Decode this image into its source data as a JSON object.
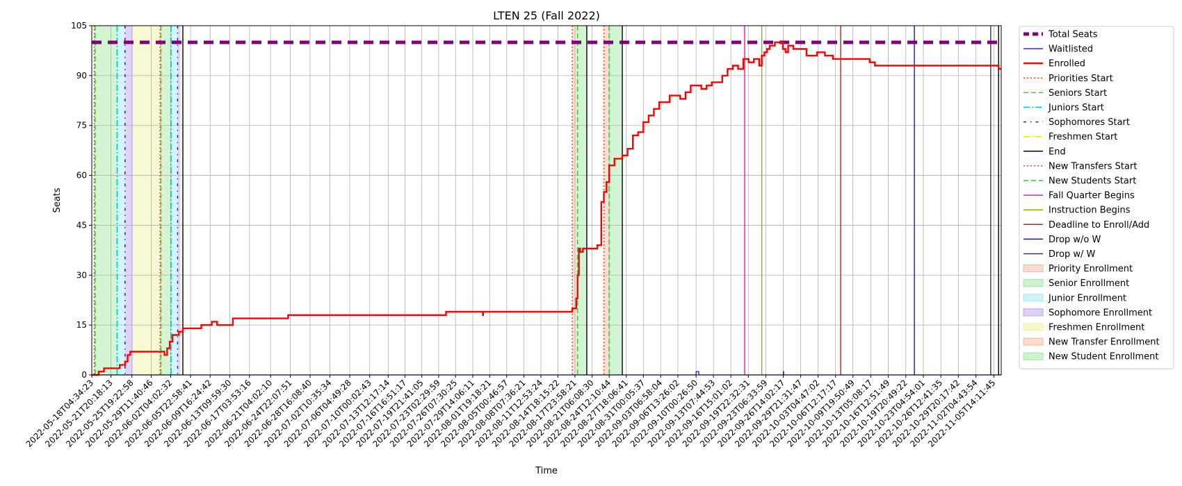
{
  "chart_data": {
    "type": "line",
    "title": "LTEN 25 (Fall 2022)",
    "xlabel": "Time",
    "ylabel": "Seats",
    "ylim": [
      0,
      105
    ],
    "yticks": [
      0,
      15,
      30,
      45,
      60,
      75,
      90,
      105
    ],
    "grid": true,
    "legend_position": "outside-right",
    "x_range": [
      "2022-05-18T04:34:23",
      "2022-11-07T00:00:00"
    ],
    "x_tick_labels": [
      "2022-05-18T04:34:23",
      "2022-05-21T20:18:13",
      "2022-05-25T19:22:58",
      "2022-05-29T11:40:46",
      "2022-06-02T04:02:32",
      "2022-06-05T22:58:41",
      "2022-06-09T16:24:42",
      "2022-06-13T09:59:30",
      "2022-06-17T03:53:16",
      "2022-06-21T04:02:10",
      "2022-06-24T22:07:51",
      "2022-06-28T16:08:40",
      "2022-07-02T10:35:34",
      "2022-07-06T04:49:28",
      "2022-07-10T00:02:43",
      "2022-07-13T12:17:14",
      "2022-07-16T16:51:17",
      "2022-07-19T21:41:05",
      "2022-07-23T02:29:59",
      "2022-07-26T07:30:25",
      "2022-07-29T14:06:11",
      "2022-08-01T19:18:21",
      "2022-08-05T00:46:57",
      "2022-08-08T07:36:21",
      "2022-08-11T12:53:24",
      "2022-08-14T18:15:22",
      "2022-08-17T23:58:21",
      "2022-08-21T06:08:30",
      "2022-08-24T12:10:44",
      "2022-08-27T18:06:41",
      "2022-08-31T00:05:37",
      "2022-09-03T06:58:04",
      "2022-09-06T13:26:02",
      "2022-09-10T00:26:50",
      "2022-09-13T07:44:53",
      "2022-09-16T15:01:02",
      "2022-09-19T22:32:31",
      "2022-09-23T06:33:59",
      "2022-09-26T14:02:17",
      "2022-09-29T21:31:47",
      "2022-10-03T04:47:02",
      "2022-10-06T12:17:17",
      "2022-10-09T19:50:49",
      "2022-10-13T05:08:17",
      "2022-10-16T12:51:49",
      "2022-10-19T20:49:22",
      "2022-10-23T04:54:01",
      "2022-10-26T12:41:35",
      "2022-10-29T20:17:42",
      "2022-11-02T04:43:54",
      "2022-11-05T14:11:45"
    ],
    "series": [
      {
        "name": "Total Seats",
        "color": "#800080",
        "style": "dashed-thick",
        "x": [
          "2022-05-18T04:34:23",
          "2022-11-07T00:00:00"
        ],
        "y": [
          100,
          100
        ]
      },
      {
        "name": "Waitlisted",
        "color": "#0000ff",
        "style": "solid-thin",
        "x": [
          "2022-05-18T04:34:23",
          "2022-09-10T00:00:00",
          "2022-09-10T00:30:00",
          "2022-09-10T12:00:00",
          "2022-09-10T12:30:00",
          "2022-09-26T14:00:00",
          "2022-09-26T15:00:00",
          "2022-09-26T16:00:00",
          "2022-11-07T00:00:00"
        ],
        "y": [
          0,
          0,
          1,
          1,
          0,
          0,
          1,
          0,
          0
        ]
      },
      {
        "name": "Enrolled",
        "color": "#ff0000",
        "style": "solid-thick",
        "x": [
          "2022-05-18T04:34:23",
          "2022-05-19T12:00:00",
          "2022-05-20T12:00:00",
          "2022-05-22T12:00:00",
          "2022-05-23T12:00:00",
          "2022-05-24T12:00:00",
          "2022-05-25T00:00:00",
          "2022-05-25T12:00:00",
          "2022-05-26T00:00:00",
          "2022-05-31T12:00:00",
          "2022-06-01T00:00:00",
          "2022-06-01T12:00:00",
          "2022-06-02T00:00:00",
          "2022-06-02T12:00:00",
          "2022-06-03T06:00:00",
          "2022-06-03T18:00:00",
          "2022-06-04T12:00:00",
          "2022-06-06T00:00:00",
          "2022-06-08T00:00:00",
          "2022-06-10T00:00:00",
          "2022-06-11T00:00:00",
          "2022-06-14T00:00:00",
          "2022-06-18T00:00:00",
          "2022-06-24T12:00:00",
          "2022-06-25T00:00:00",
          "2022-06-25T01:00:00",
          "2022-07-10T00:00:00",
          "2022-07-24T12:00:00",
          "2022-07-26T00:00:00",
          "2022-07-31T12:00:00",
          "2022-07-31T13:00:00",
          "2022-08-02T00:00:00",
          "2022-08-17T12:00:00",
          "2022-08-17T18:00:00",
          "2022-08-18T06:00:00",
          "2022-08-18T12:00:00",
          "2022-08-18T18:00:00",
          "2022-08-19T00:00:00",
          "2022-08-19T12:00:00",
          "2022-08-20T00:00:00",
          "2022-08-22T06:00:00",
          "2022-08-23T00:00:00",
          "2022-08-23T12:00:00",
          "2022-08-24T00:00:00",
          "2022-08-24T12:00:00",
          "2022-08-25T00:00:00",
          "2022-08-25T12:00:00",
          "2022-08-26T00:00:00",
          "2022-08-27T00:00:00",
          "2022-08-28T00:00:00",
          "2022-08-29T00:00:00",
          "2022-08-30T00:00:00",
          "2022-08-31T00:00:00",
          "2022-09-01T00:00:00",
          "2022-09-02T00:00:00",
          "2022-09-03T00:00:00",
          "2022-09-04T00:00:00",
          "2022-09-05T00:00:00",
          "2022-09-07T00:00:00",
          "2022-09-08T00:00:00",
          "2022-09-09T00:00:00",
          "2022-09-10T12:00:00",
          "2022-09-11T00:00:00",
          "2022-09-12T00:00:00",
          "2022-09-12T12:00:00",
          "2022-09-13T00:00:00",
          "2022-09-15T00:00:00",
          "2022-09-16T00:00:00",
          "2022-09-17T00:00:00",
          "2022-09-17T12:00:00",
          "2022-09-18T00:00:00",
          "2022-09-19T00:00:00",
          "2022-09-20T00:00:00",
          "2022-09-21T00:00:00",
          "2022-09-22T00:00:00",
          "2022-09-22T12:00:00",
          "2022-09-23T00:00:00",
          "2022-09-23T12:00:00",
          "2022-09-24T00:00:00",
          "2022-09-25T00:00:00",
          "2022-09-26T00:00:00",
          "2022-09-26T12:00:00",
          "2022-09-27T00:00:00",
          "2022-09-27T12:00:00",
          "2022-09-28T00:00:00",
          "2022-09-28T12:00:00",
          "2022-09-30T00:00:00",
          "2022-10-01T00:00:00",
          "2022-10-02T00:00:00",
          "2022-10-03T00:00:00",
          "2022-10-03T12:00:00",
          "2022-10-04T12:00:00",
          "2022-10-05T00:00:00",
          "2022-10-05T12:00:00",
          "2022-10-06T00:00:00",
          "2022-10-06T12:00:00",
          "2022-10-07T00:00:00",
          "2022-10-07T12:00:00",
          "2022-10-08T00:00:00",
          "2022-10-09T00:00:00",
          "2022-10-13T00:00:00",
          "2022-10-14T00:00:00",
          "2022-10-15T00:00:00",
          "2022-11-06T00:00:00",
          "2022-11-06T12:00:00",
          "2022-11-07T00:00:00"
        ],
        "y": [
          0,
          1,
          2,
          2,
          3,
          4,
          6,
          7,
          7,
          7,
          6,
          8,
          10,
          12,
          12,
          13,
          14,
          14,
          15,
          16,
          15,
          17,
          17,
          18,
          18,
          18,
          18,
          19,
          19,
          18,
          19,
          19,
          20,
          20,
          23,
          30,
          38,
          37,
          38,
          38,
          39,
          52,
          55,
          58,
          63,
          63,
          65,
          65,
          66,
          68,
          72,
          73,
          76,
          78,
          80,
          82,
          82,
          84,
          83,
          85,
          87,
          87,
          86,
          87,
          87,
          88,
          90,
          92,
          93,
          93,
          92,
          95,
          94,
          95,
          93,
          96,
          97,
          98,
          99,
          100,
          100,
          98,
          97,
          99,
          99,
          98,
          98,
          96,
          96,
          97,
          97,
          96,
          96,
          96,
          95,
          95,
          95,
          95,
          95,
          95,
          94,
          93,
          93,
          93,
          92,
          92
        ]
      }
    ],
    "event_lines": [
      {
        "name": "Priorities Start",
        "color": "#ff4500",
        "style": "dotted",
        "x": [
          "2022-05-18T16:00:00",
          "2022-05-31T04:00:00"
        ]
      },
      {
        "name": "Seniors Start",
        "color": "#32cd32",
        "style": "dashed",
        "x": [
          "2022-05-18T20:00:00",
          "2022-05-31T08:00:00"
        ]
      },
      {
        "name": "Juniors Start",
        "color": "#00bcd4",
        "style": "dashdot",
        "x": [
          "2022-05-23T00:00:00",
          "2022-06-02T06:00:00"
        ]
      },
      {
        "name": "Sophomores Start",
        "color": "#5500ff",
        "style": "dashdot2",
        "x": [
          "2022-05-24T12:00:00",
          "2022-06-03T12:00:00"
        ]
      },
      {
        "name": "Freshmen Start",
        "color": "#e6e600",
        "style": "dashdot",
        "x": []
      },
      {
        "name": "End",
        "color": "#000000",
        "style": "solid",
        "x": [
          "2022-06-04T12:00:00",
          "2022-08-20T06:00:00",
          "2022-08-27T00:00:00",
          "2022-11-06T12:00:00"
        ]
      },
      {
        "name": "New Transfers Start",
        "color": "#ff4500",
        "style": "dotted",
        "x": [
          "2022-08-17T12:00:00",
          "2022-08-23T12:00:00"
        ]
      },
      {
        "name": "New Students Start",
        "color": "#32cd32",
        "style": "dashed",
        "x": [
          "2022-08-18T12:00:00",
          "2022-08-24T12:00:00"
        ]
      },
      {
        "name": "Fall Quarter Begins",
        "color": "#e6199a",
        "style": "solid",
        "x": [
          "2022-09-19T06:00:00"
        ]
      },
      {
        "name": "Instruction Begins",
        "color": "#7fba00",
        "style": "solid",
        "x": [
          "2022-09-22T12:00:00"
        ]
      },
      {
        "name": "Deadline to Enroll/Add",
        "color": "#cc2200",
        "style": "solid",
        "x": [
          "2022-10-07T12:00:00"
        ]
      },
      {
        "name": "Drop w/o W",
        "color": "#1a1aa0",
        "style": "solid",
        "x": [
          "2022-10-21T12:00:00"
        ]
      },
      {
        "name": "Drop w/ W",
        "color": "#2f3a4a",
        "style": "solid",
        "x": [
          "2022-11-05T00:00:00"
        ]
      }
    ],
    "spans": [
      {
        "name": "Priority Enrollment",
        "color": "#f4b8a0",
        "from": "2022-05-18T16:00:00",
        "to": "2022-05-18T20:00:00"
      },
      {
        "name": "Senior Enrollment",
        "color": "#9ee89e",
        "from": "2022-05-18T20:00:00",
        "to": "2022-05-23T00:00:00"
      },
      {
        "name": "Junior Enrollment",
        "color": "#9eeaf0",
        "from": "2022-05-23T00:00:00",
        "to": "2022-05-24T12:00:00"
      },
      {
        "name": "Sophomore Enrollment",
        "color": "#b9a2ee",
        "from": "2022-05-24T12:00:00",
        "to": "2022-05-26T00:00:00"
      },
      {
        "name": "Freshmen Enrollment",
        "color": "#f0f0a0",
        "from": "2022-05-26T00:00:00",
        "to": "2022-05-31T04:00:00"
      },
      {
        "name": "Priority Enrollment",
        "color": "#f4b8a0",
        "from": "2022-05-31T04:00:00",
        "to": "2022-05-31T08:00:00"
      },
      {
        "name": "Senior Enrollment",
        "color": "#9ee89e",
        "from": "2022-05-31T08:00:00",
        "to": "2022-06-02T06:00:00"
      },
      {
        "name": "Junior Enrollment",
        "color": "#9eeaf0",
        "from": "2022-06-02T06:00:00",
        "to": "2022-06-03T12:00:00"
      },
      {
        "name": "Sophomore Enrollment",
        "color": "#b9a2ee",
        "from": "2022-06-03T12:00:00",
        "to": "2022-06-04T00:00:00"
      },
      {
        "name": "Freshmen Enrollment",
        "color": "#f0f0a0",
        "from": "2022-06-04T00:00:00",
        "to": "2022-06-04T12:00:00"
      },
      {
        "name": "New Transfer Enrollment",
        "color": "#f4b8a0",
        "from": "2022-08-17T12:00:00",
        "to": "2022-08-18T12:00:00"
      },
      {
        "name": "New Student Enrollment",
        "color": "#9ee89e",
        "from": "2022-08-18T12:00:00",
        "to": "2022-08-20T06:00:00"
      },
      {
        "name": "New Transfer Enrollment",
        "color": "#f4b8a0",
        "from": "2022-08-23T12:00:00",
        "to": "2022-08-24T12:00:00"
      },
      {
        "name": "New Student Enrollment",
        "color": "#9ee89e",
        "from": "2022-08-24T12:00:00",
        "to": "2022-08-27T00:00:00"
      }
    ],
    "legend": [
      {
        "label": "Total Seats",
        "kind": "line",
        "color": "#800080",
        "style": "dashed-thick"
      },
      {
        "label": "Waitlisted",
        "kind": "line",
        "color": "#0000ff",
        "style": "solid-thin"
      },
      {
        "label": "Enrolled",
        "kind": "line",
        "color": "#ff0000",
        "style": "solid-thick"
      },
      {
        "label": "Priorities Start",
        "kind": "line",
        "color": "#ff4500",
        "style": "dotted"
      },
      {
        "label": "Seniors Start",
        "kind": "line",
        "color": "#32cd32",
        "style": "dashed"
      },
      {
        "label": "Juniors Start",
        "kind": "line",
        "color": "#00bcd4",
        "style": "dashdot"
      },
      {
        "label": "Sophomores Start",
        "kind": "line",
        "color": "#5500ff",
        "style": "dashdot2"
      },
      {
        "label": "Freshmen Start",
        "kind": "line",
        "color": "#e6e600",
        "style": "dashdot"
      },
      {
        "label": "End",
        "kind": "line",
        "color": "#000000",
        "style": "solid"
      },
      {
        "label": "New Transfers Start",
        "kind": "line",
        "color": "#ff4500",
        "style": "dotted"
      },
      {
        "label": "New Students Start",
        "kind": "line",
        "color": "#32cd32",
        "style": "dashed"
      },
      {
        "label": "Fall Quarter Begins",
        "kind": "line",
        "color": "#e6199a",
        "style": "solid"
      },
      {
        "label": "Instruction Begins",
        "kind": "line",
        "color": "#7fba00",
        "style": "solid"
      },
      {
        "label": "Deadline to Enroll/Add",
        "kind": "line",
        "color": "#cc2200",
        "style": "solid"
      },
      {
        "label": "Drop w/o W",
        "kind": "line",
        "color": "#1a1aa0",
        "style": "solid"
      },
      {
        "label": "Drop w/ W",
        "kind": "line",
        "color": "#2f3a4a",
        "style": "solid"
      },
      {
        "label": "Priority Enrollment",
        "kind": "patch",
        "color": "#f4b8a0"
      },
      {
        "label": "Senior Enrollment",
        "kind": "patch",
        "color": "#9ee89e"
      },
      {
        "label": "Junior Enrollment",
        "kind": "patch",
        "color": "#9eeaf0"
      },
      {
        "label": "Sophomore Enrollment",
        "kind": "patch",
        "color": "#b9a2ee"
      },
      {
        "label": "Freshmen Enrollment",
        "kind": "patch",
        "color": "#f0f0a0"
      },
      {
        "label": "New Transfer Enrollment",
        "kind": "patch",
        "color": "#f4b8a0"
      },
      {
        "label": "New Student Enrollment",
        "kind": "patch",
        "color": "#9ee89e"
      }
    ]
  }
}
